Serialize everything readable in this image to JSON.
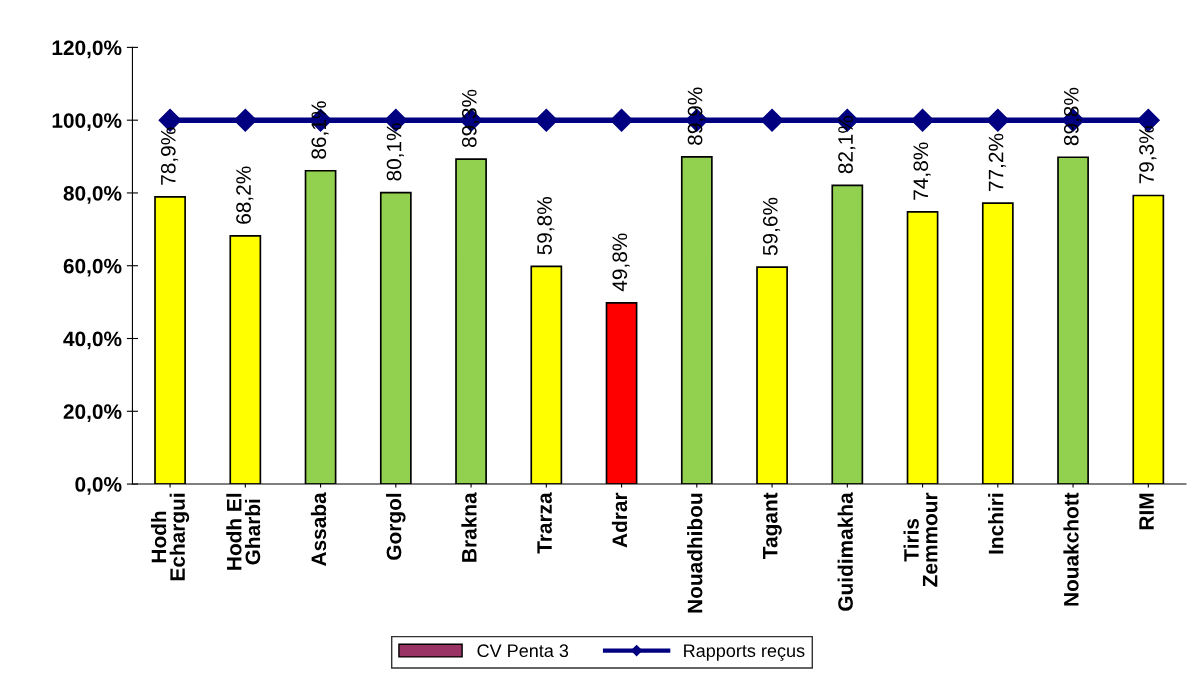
{
  "chart_data": {
    "type": "bar",
    "categories": [
      "Hodh\nEchargui",
      "Hodh El\nGharbi",
      "Assaba",
      "Gorgol",
      "Brakna",
      "Trarza",
      "Adrar",
      "Nouadhibou",
      "Tagant",
      "Guidimakha",
      "Tiris\nZemmour",
      "Inchiri",
      "Nouakchott",
      "RIM"
    ],
    "series": [
      {
        "name": "CV Penta 3",
        "color": "#993366",
        "colors": [
          "#ffff00",
          "#ffff00",
          "#92d050",
          "#92d050",
          "#92d050",
          "#ffff00",
          "#ff0000",
          "#92d050",
          "#ffff00",
          "#92d050",
          "#ffff00",
          "#ffff00",
          "#92d050",
          "#ffff00"
        ],
        "values": [
          78.9,
          68.2,
          86.1,
          80.1,
          89.3,
          59.8,
          49.8,
          89.9,
          59.6,
          82.1,
          74.8,
          77.2,
          89.8,
          79.3
        ],
        "value_labels": [
          "78,9%",
          "68,2%",
          "86,1%",
          "80,1%",
          "89,3%",
          "59,8%",
          "49,8%",
          "89,9%",
          "59,6%",
          "82,1%",
          "74,8%",
          "77,2%",
          "89,8%",
          "79,3%"
        ]
      },
      {
        "name": "Rapports reçus",
        "type": "line",
        "color": "#000080",
        "marker": "diamond",
        "values": [
          100,
          100,
          100,
          100,
          100,
          100,
          100,
          100,
          100,
          100,
          100,
          100,
          100,
          100
        ]
      }
    ],
    "ylim": [
      0,
      120
    ],
    "yticks": [
      {
        "value": 0,
        "label": "0,0%"
      },
      {
        "value": 20,
        "label": "20,0%"
      },
      {
        "value": 40,
        "label": "40,0%"
      },
      {
        "value": 60,
        "label": "60,0%"
      },
      {
        "value": 80,
        "label": "80,0%"
      },
      {
        "value": 100,
        "label": "100,0%"
      },
      {
        "value": 120,
        "label": "120,0%"
      }
    ],
    "grid": false,
    "legend": "bottom"
  }
}
